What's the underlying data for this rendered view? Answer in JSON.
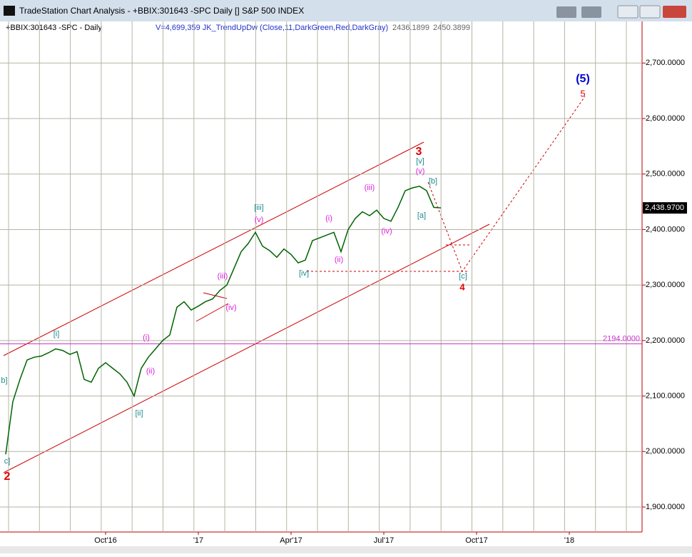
{
  "window": {
    "title": "TradeStation Chart Analysis - +BBIX:301643 -SPC Daily [] S&P 500 INDEX"
  },
  "chart_data": {
    "type": "line",
    "header": [
      "+BBIX:301643 -SPC - Daily",
      "V=4,699,359  JK_TrendUpDw (Close,11,DarkGreen,Red,DarkGray)",
      "2436.1899",
      "2450.3899"
    ],
    "color": "#006400",
    "categories": [
      null,
      null,
      null,
      null,
      null,
      null,
      null,
      null,
      null,
      null,
      null,
      null,
      null,
      null,
      "Oct'16",
      null,
      null,
      null,
      null,
      null,
      null,
      null,
      null,
      null,
      null,
      null,
      null,
      "'17",
      null,
      null,
      null,
      null,
      null,
      null,
      null,
      null,
      null,
      null,
      null,
      null,
      "Apr'17",
      null,
      null,
      null,
      null,
      null,
      null,
      null,
      null,
      null,
      null,
      null,
      null,
      "Jul'17",
      null,
      null,
      null,
      null,
      null,
      null,
      null,
      null,
      null,
      null,
      null,
      null,
      "Oct'17",
      null,
      null,
      null,
      null,
      null,
      null,
      null,
      null,
      null,
      null,
      null,
      null,
      "'18",
      null,
      null,
      null,
      null,
      null,
      null,
      null,
      null,
      null,
      null
    ],
    "values": [
      1995,
      2090,
      2130,
      2165,
      2170,
      2172,
      2178,
      2185,
      2182,
      2175,
      2180,
      2130,
      2125,
      2150,
      2160,
      2150,
      2140,
      2125,
      2100,
      2150,
      2170,
      2185,
      2200,
      2210,
      2260,
      2270,
      2255,
      2262,
      2270,
      2275,
      2290,
      2300,
      2330,
      2360,
      2375,
      2395,
      2370,
      2362,
      2350,
      2365,
      2355,
      2340,
      2345,
      2380,
      2385,
      2390,
      2395,
      2360,
      2400,
      2420,
      2432,
      2425,
      2435,
      2420,
      2415,
      2440,
      2470,
      2475,
      2478,
      2470,
      2440,
      2438.97,
      null,
      null,
      null,
      null,
      null,
      null,
      null,
      null,
      null,
      null,
      null,
      null,
      null,
      null,
      null,
      null,
      null,
      null,
      null,
      null,
      null,
      null,
      null,
      null,
      null,
      null,
      null,
      null
    ],
    "ylim": [
      1855,
      2775
    ],
    "yticks": [
      {
        "value": 1900,
        "label": "1,900.0000"
      },
      {
        "value": 2000,
        "label": "2,000.0000"
      },
      {
        "value": 2100,
        "label": "2,100.0000"
      },
      {
        "value": 2200,
        "label": "2,200.0000"
      },
      {
        "value": 2300,
        "label": "2,300.0000"
      },
      {
        "value": 2400,
        "label": "2,400.0000"
      },
      {
        "value": 2500,
        "label": "2,500.0000"
      },
      {
        "value": 2600,
        "label": "2,600.0000"
      },
      {
        "value": 2700,
        "label": "2,700.0000"
      }
    ],
    "grid": true,
    "last_price": {
      "value": 2438.97,
      "label": "2,438.9700"
    },
    "reference_line": {
      "value": 2194,
      "label": "2194.0000",
      "color": "#cc33cc"
    },
    "annotations": [
      "2",
      "c]",
      "b]",
      "[i]",
      "(i)",
      "(ii)",
      "[ii]",
      "(iii)",
      "(iv)",
      "[iii]",
      "(v)",
      "[iv]",
      "(i)",
      "(ii)",
      "(iii)",
      "(iv)",
      "3",
      "[v]",
      "(v)",
      "[b]",
      "[a]",
      "[c]",
      "4",
      "(5)",
      "5"
    ]
  }
}
